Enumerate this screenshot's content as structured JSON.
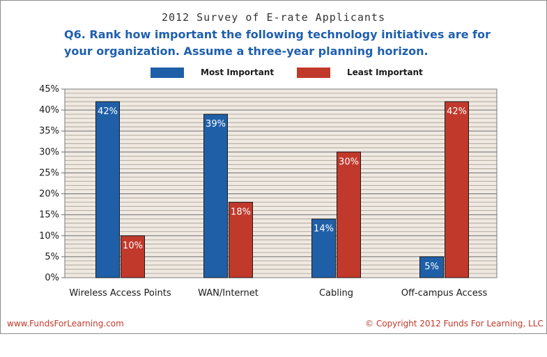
{
  "survey_title": "2012 Survey of E-rate Applicants",
  "question": "Q6. Rank how important the following technology initiatives are for your organization. Assume a three-year planning horizon.",
  "footer": {
    "website": "www.FundsForLearning.com",
    "copyright": "© Copyright 2012 Funds For Learning, LLC"
  },
  "chart_data": {
    "type": "bar",
    "categories": [
      "Wireless Access Points",
      "WAN/Internet",
      "Cabling",
      "Off-campus Access"
    ],
    "series": [
      {
        "name": "Most Important",
        "values": [
          42,
          39,
          14,
          5
        ],
        "labels": [
          "42%",
          "39%",
          "14%",
          "5%"
        ],
        "color": "#1f5fa8"
      },
      {
        "name": "Least Important",
        "values": [
          10,
          18,
          30,
          42
        ],
        "labels": [
          "10%",
          "18%",
          "30%",
          "42%"
        ],
        "color": "#c0392b"
      }
    ],
    "ylim": [
      0,
      45
    ],
    "yticks": [
      0,
      5,
      10,
      15,
      20,
      25,
      30,
      35,
      40,
      45
    ],
    "ytick_labels": [
      "0%",
      "5%",
      "10%",
      "15%",
      "20%",
      "25%",
      "30%",
      "35%",
      "40%",
      "45%"
    ],
    "grid": true,
    "legend_position": "top"
  }
}
